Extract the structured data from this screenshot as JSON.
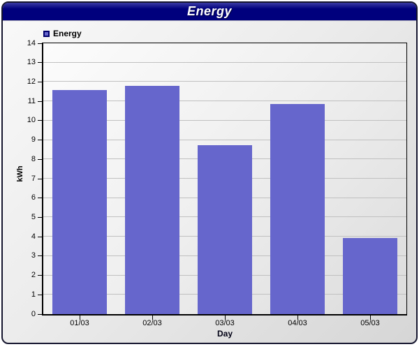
{
  "window": {
    "title": "Energy"
  },
  "legend": {
    "position": "top-left",
    "items": [
      {
        "label": "Energy",
        "swatch_color": "#6666cc"
      }
    ]
  },
  "chart_data": {
    "type": "bar",
    "title": "Energy",
    "series": [
      {
        "name": "Energy",
        "values": [
          11.6,
          11.8,
          8.75,
          10.85,
          3.95
        ]
      }
    ],
    "categories": [
      "01/03",
      "02/03",
      "03/03",
      "04/03",
      "05/03"
    ],
    "xlabel": "Day",
    "ylabel": "kWh",
    "ylim": [
      0,
      14
    ],
    "ytick_step": 1,
    "grid": "horizontal",
    "legend_position": "top-left",
    "bar_color": "#6666cc"
  },
  "colors": {
    "title_bar": "#00007d",
    "title_text": "#ffffff",
    "bar": "#6666cc",
    "gridline": "#c0c0c0",
    "axis": "#000000",
    "panel_border": "#15152e"
  }
}
